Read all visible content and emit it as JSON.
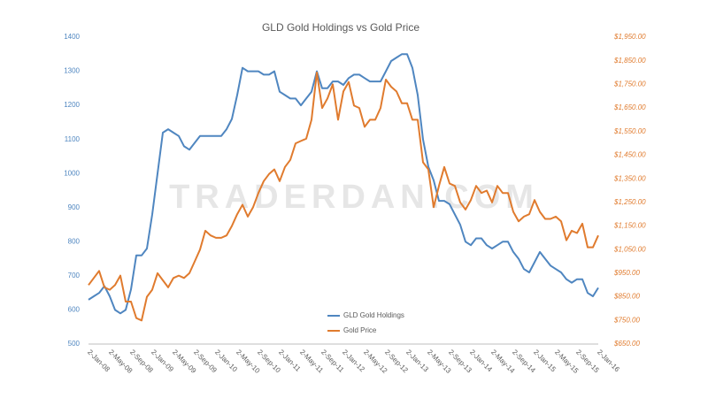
{
  "chart_data": {
    "type": "line",
    "title": "GLD Gold Holdings vs Gold Price",
    "watermark": "TRADERDAN.COM",
    "legend": "lower center",
    "categories": [
      "2-Jan-08",
      null,
      null,
      null,
      "2-May-08",
      null,
      null,
      null,
      "2-Sep-08",
      null,
      null,
      null,
      "2-Jan-09",
      null,
      null,
      null,
      "2-May-09",
      null,
      null,
      null,
      "2-Sep-09",
      null,
      null,
      null,
      "2-Jan-10",
      null,
      null,
      null,
      "2-May-10",
      null,
      null,
      null,
      "2-Sep-10",
      null,
      null,
      null,
      "2-Jan-11",
      null,
      null,
      null,
      "2-May-11",
      null,
      null,
      null,
      "2-Sep-11",
      null,
      null,
      null,
      "2-Jan-12",
      null,
      null,
      null,
      "2-May-12",
      null,
      null,
      null,
      "2-Sep-12",
      null,
      null,
      null,
      "2-Jan-13",
      null,
      null,
      null,
      "2-May-13",
      null,
      null,
      null,
      "2-Sep-13",
      null,
      null,
      null,
      "2-Jan-14",
      null,
      null,
      null,
      "2-May-14",
      null,
      null,
      null,
      "2-Sep-14",
      null,
      null,
      null,
      "2-Jan-15",
      null,
      null,
      null,
      "2-May-15",
      null,
      null,
      null,
      "2-Sep-15",
      null,
      null,
      null,
      "2-Jan-16"
    ],
    "series": [
      {
        "name": "GLD Gold Holdings",
        "color": "#4f86c0",
        "axis": "y",
        "values": [
          630,
          640,
          650,
          670,
          640,
          600,
          590,
          600,
          660,
          760,
          760,
          780,
          880,
          1000,
          1120,
          1130,
          1120,
          1110,
          1080,
          1070,
          1090,
          1110,
          1110,
          1110,
          1110,
          1110,
          1130,
          1160,
          1230,
          1310,
          1300,
          1300,
          1300,
          1290,
          1290,
          1300,
          1240,
          1230,
          1220,
          1220,
          1200,
          1220,
          1240,
          1300,
          1250,
          1250,
          1270,
          1270,
          1260,
          1280,
          1290,
          1290,
          1280,
          1270,
          1270,
          1270,
          1300,
          1330,
          1340,
          1350,
          1350,
          1310,
          1230,
          1100,
          1020,
          980,
          920,
          920,
          910,
          880,
          850,
          800,
          790,
          810,
          810,
          790,
          780,
          790,
          800,
          800,
          770,
          750,
          720,
          710,
          740,
          770,
          750,
          730,
          720,
          710,
          690,
          680,
          690,
          690,
          650,
          640,
          665
        ]
      },
      {
        "name": "Gold Price",
        "color": "#e07b2e",
        "axis": "y2",
        "values": [
          900,
          930,
          960,
          890,
          880,
          900,
          940,
          830,
          830,
          760,
          750,
          850,
          880,
          950,
          920,
          890,
          930,
          940,
          930,
          950,
          1000,
          1050,
          1130,
          1110,
          1100,
          1100,
          1110,
          1150,
          1200,
          1240,
          1190,
          1230,
          1290,
          1340,
          1370,
          1390,
          1340,
          1400,
          1430,
          1500,
          1510,
          1520,
          1600,
          1800,
          1650,
          1690,
          1750,
          1600,
          1720,
          1760,
          1660,
          1650,
          1570,
          1600,
          1600,
          1650,
          1770,
          1740,
          1720,
          1670,
          1670,
          1600,
          1600,
          1420,
          1390,
          1230,
          1320,
          1400,
          1330,
          1320,
          1250,
          1220,
          1260,
          1320,
          1290,
          1300,
          1250,
          1320,
          1290,
          1290,
          1210,
          1170,
          1190,
          1200,
          1260,
          1210,
          1180,
          1180,
          1190,
          1170,
          1090,
          1130,
          1120,
          1160,
          1060,
          1060,
          1110
        ]
      }
    ],
    "ylim": [
      500,
      1400
    ],
    "yticks": [
      500,
      600,
      700,
      800,
      900,
      1000,
      1100,
      1200,
      1300,
      1400
    ],
    "y2lim": [
      650,
      1950
    ],
    "y2ticks": [
      {
        "value": 650,
        "label": "$650.00"
      },
      {
        "value": 750,
        "label": "$750.00"
      },
      {
        "value": 850,
        "label": "$850.00"
      },
      {
        "value": 950,
        "label": "$950.00"
      },
      {
        "value": 1050,
        "label": "$1,050.00"
      },
      {
        "value": 1150,
        "label": "$1,150.00"
      },
      {
        "value": 1250,
        "label": "$1,250.00"
      },
      {
        "value": 1350,
        "label": "$1,350.00"
      },
      {
        "value": 1450,
        "label": "$1,450.00"
      },
      {
        "value": 1550,
        "label": "$1,550.00"
      },
      {
        "value": 1650,
        "label": "$1,650.00"
      },
      {
        "value": 1750,
        "label": "$1,750.00"
      },
      {
        "value": 1850,
        "label": "$1,850.00"
      },
      {
        "value": 1950,
        "label": "$1,950.00"
      }
    ]
  }
}
